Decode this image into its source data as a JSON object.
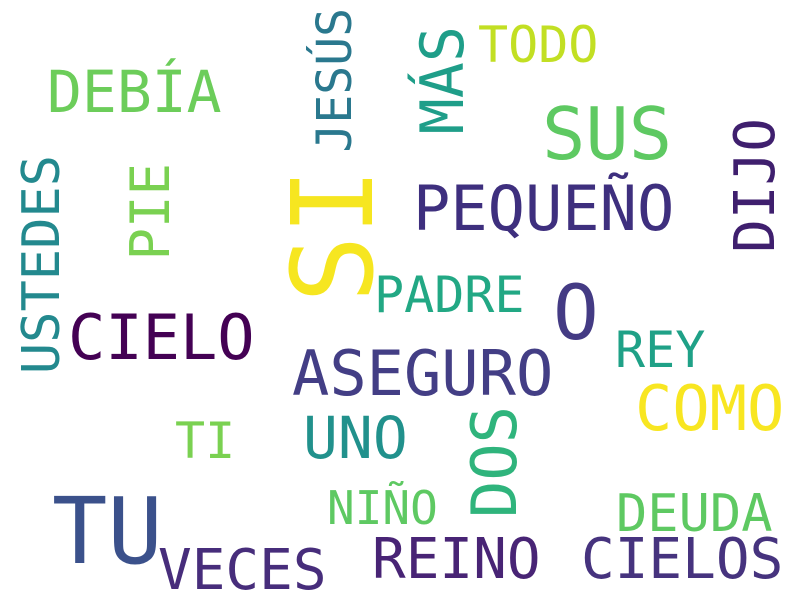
{
  "words": {
    "si": {
      "text": "SI",
      "color": "#f6e620"
    },
    "tu": {
      "text": "TU",
      "color": "#3b518b"
    },
    "o": {
      "text": "O",
      "color": "#443b84"
    },
    "sus": {
      "text": "SUS",
      "color": "#5ec962"
    },
    "como": {
      "text": "COMO",
      "color": "#f8e621"
    },
    "aseguro": {
      "text": "ASEGURO",
      "color": "#433e85"
    },
    "cielo": {
      "text": "CIELO",
      "color": "#440154"
    },
    "pequeno": {
      "text": "PEQUEÑO",
      "color": "#3e2f7e"
    },
    "debia": {
      "text": "DEBÍA",
      "color": "#6ccd5a"
    },
    "uno": {
      "text": "UNO",
      "color": "#21918c"
    },
    "reino": {
      "text": "REINO",
      "color": "#482475"
    },
    "cielos": {
      "text": "CIELOS",
      "color": "#46337e"
    },
    "veces": {
      "text": "VECES",
      "color": "#472d7b"
    },
    "deuda": {
      "text": "DEUDA",
      "color": "#5ec962"
    },
    "padre": {
      "text": "PADRE",
      "color": "#22a884"
    },
    "rey": {
      "text": "REY",
      "color": "#1fa187"
    },
    "todo": {
      "text": "TODO",
      "color": "#c2df23"
    },
    "ti": {
      "text": "TI",
      "color": "#7ad151"
    },
    "nino": {
      "text": "NIÑO",
      "color": "#5ec962"
    },
    "mas": {
      "text": "MÁS",
      "color": "#1f9e89"
    },
    "jesus": {
      "text": "JESÚS",
      "color": "#2a788e"
    },
    "dijo": {
      "text": "DIJO",
      "color": "#3f1f6e"
    },
    "pie": {
      "text": "PIE",
      "color": "#7ad151"
    },
    "ustedes": {
      "text": "USTEDES",
      "color": "#23898e"
    },
    "dos": {
      "text": "DOS",
      "color": "#2fb47c"
    }
  }
}
